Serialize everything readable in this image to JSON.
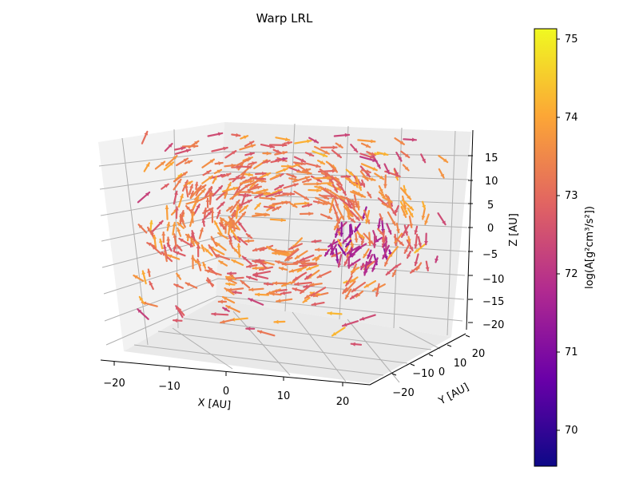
{
  "chart_data": {
    "type": "3d-quiver",
    "title": "Warp LRL",
    "xlabel": "X [AU]",
    "ylabel": "Y [AU]",
    "zlabel": "Z [AU]",
    "xlim": [
      -24,
      24
    ],
    "ylim": [
      -24,
      24
    ],
    "zlim": [
      -21,
      19
    ],
    "x_ticks": [
      "−20",
      "−10",
      "0",
      "10",
      "20"
    ],
    "y_ticks": [
      "−20",
      "−10",
      "0",
      "10",
      "20"
    ],
    "z_ticks": [
      "−20",
      "−15",
      "−10",
      "−5",
      "0",
      "5",
      "10",
      "15"
    ],
    "grid": true,
    "colormap": "plasma",
    "colorbar": {
      "label": "log(A[g²cm³/s²])",
      "min": 69.55,
      "max": 75.15,
      "ticks": [
        "70",
        "71",
        "72",
        "73",
        "74",
        "75"
      ]
    },
    "colors": {
      "cmap_stops": [
        "#0d0887",
        "#6a00a8",
        "#b12a90",
        "#e16462",
        "#fca636",
        "#f0f921"
      ],
      "pane": "#f2f2f2",
      "grid": "#b0b0b0"
    }
  }
}
